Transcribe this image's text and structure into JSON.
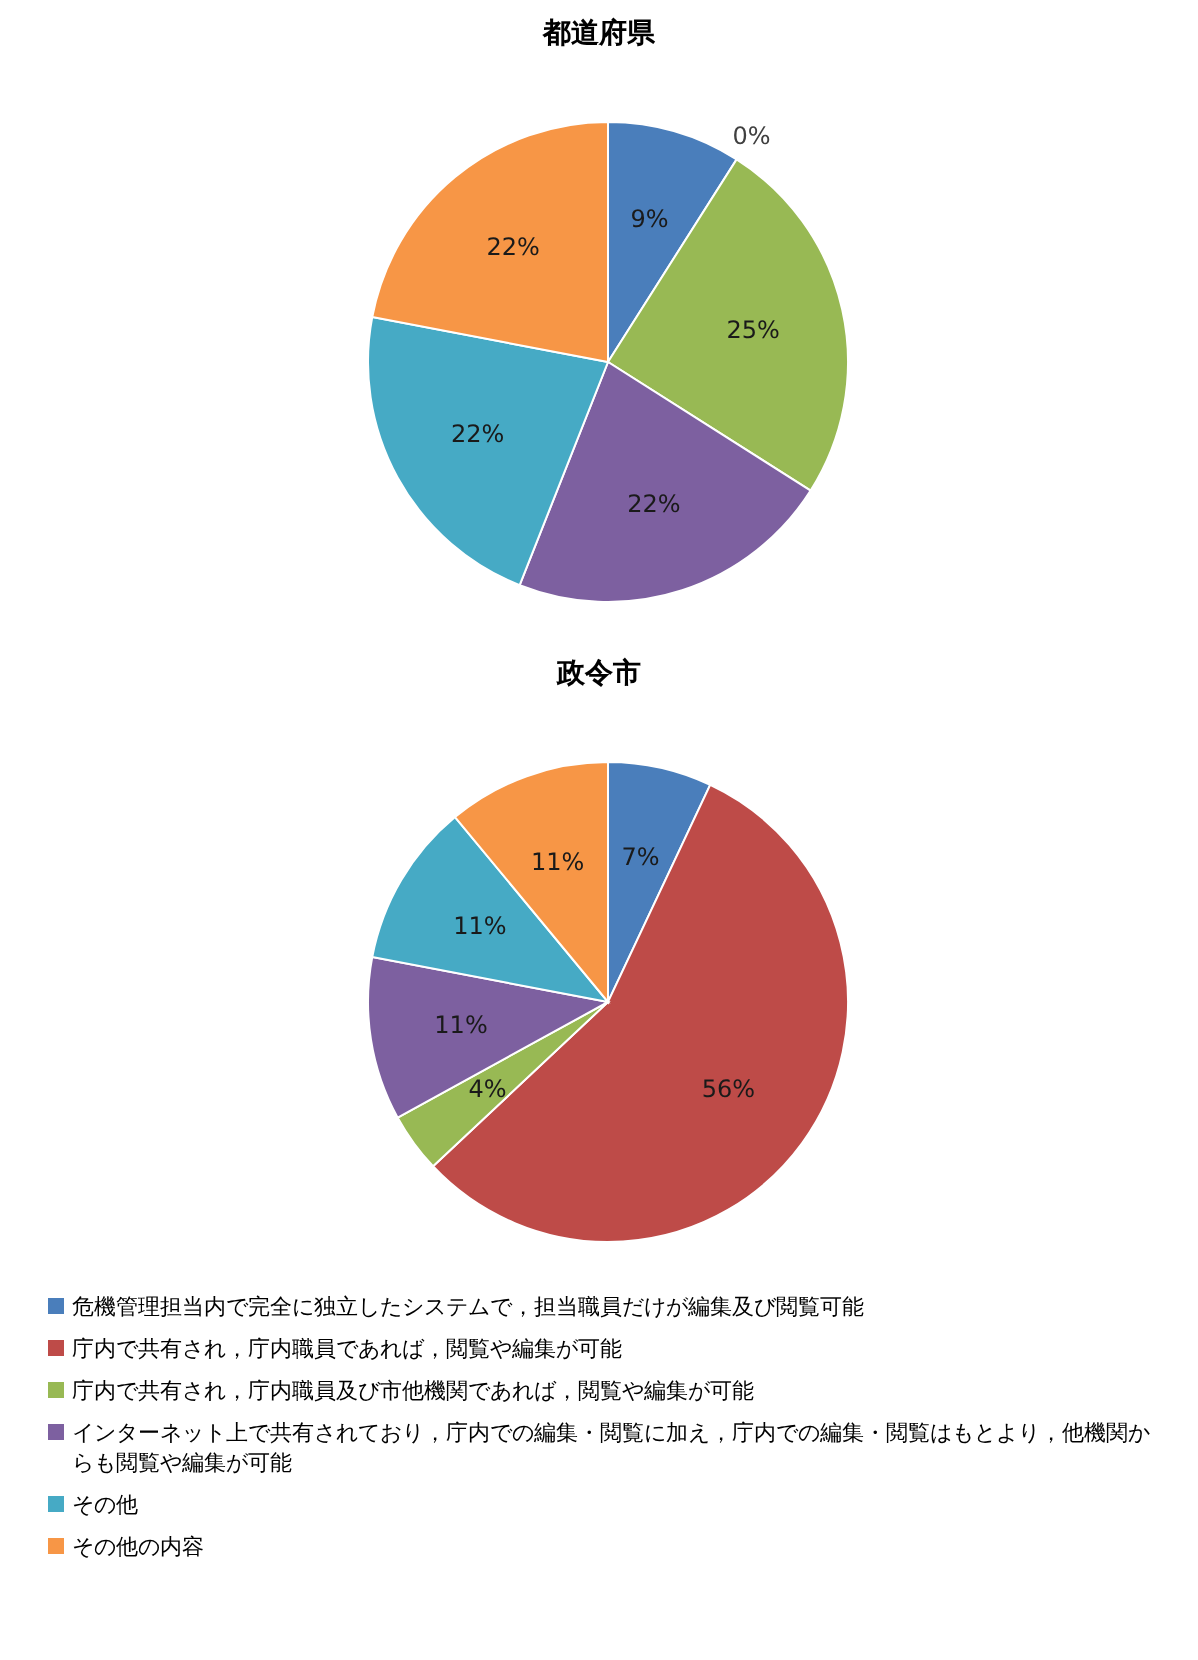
{
  "chart_data": [
    {
      "type": "pie",
      "title": "都道府県",
      "categories": [
        "危機管理担当内で完全に独立したシステムで，担当職員だけが編集及び閲覧可能",
        "庁内で共有され，庁内職員であれば，閲覧や編集が可能",
        "庁内で共有され，庁内職員及び市他機関であれば，閲覧や編集が可能",
        "インターネット上で共有されており，庁内での編集・閲覧に加え，庁内での編集・閲覧はもとより，他機関からも閲覧や編集が可能",
        "その他",
        "その他の内容"
      ],
      "values": [
        9,
        0,
        25,
        22,
        22,
        22
      ],
      "value_labels": [
        "9%",
        "0%",
        "25%",
        "22%",
        "22%",
        "22%"
      ],
      "colors": [
        "#4a7ebb",
        "#be4b48",
        "#98b954",
        "#7d60a0",
        "#46aac5",
        "#f79646"
      ],
      "legend": "bottom"
    },
    {
      "type": "pie",
      "title": "政令市",
      "categories": [
        null,
        null,
        null,
        null,
        null,
        null
      ],
      "values": [
        7,
        56,
        4,
        11,
        11,
        11
      ],
      "value_labels": [
        "7%",
        "56%",
        "4%",
        "11%",
        "11%",
        "11%"
      ],
      "colors": [
        "#4a7ebb",
        "#be4b48",
        "#98b954",
        "#7d60a0",
        "#46aac5",
        "#f79646"
      ]
    }
  ]
}
